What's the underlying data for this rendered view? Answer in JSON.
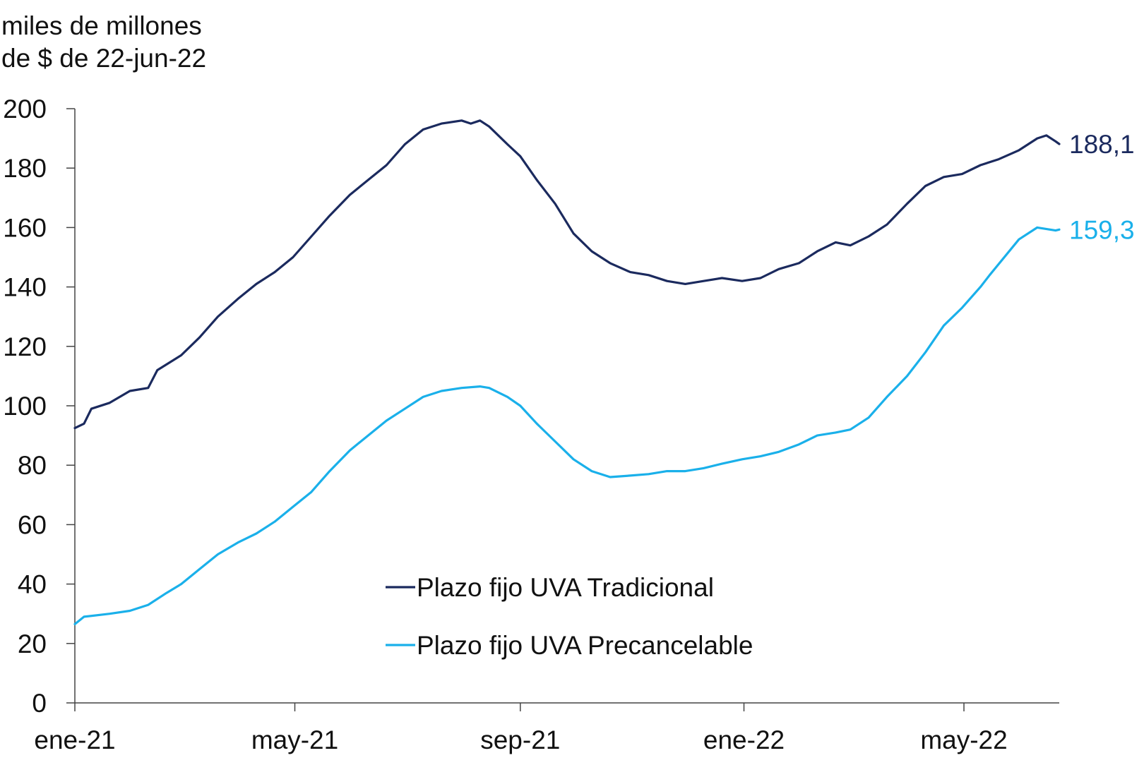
{
  "chart_data": {
    "type": "line",
    "ylabel_line1": "miles de millones",
    "ylabel_line2": "de $ de 22-jun-22",
    "ylim": [
      0,
      200
    ],
    "yticks": [
      "0",
      "20",
      "40",
      "60",
      "80",
      "100",
      "120",
      "140",
      "160",
      "180",
      "200"
    ],
    "x_range": [
      "2021-01-01",
      "2022-06-22"
    ],
    "x_ticks": [
      {
        "date": "2021-01-01",
        "label": "ene-21"
      },
      {
        "date": "2021-05-01",
        "label": "may-21"
      },
      {
        "date": "2021-09-01",
        "label": "sep-21"
      },
      {
        "date": "2022-01-01",
        "label": "ene-22"
      },
      {
        "date": "2022-05-01",
        "label": "may-22"
      }
    ],
    "grid": false,
    "legend_position": "bottom-center",
    "series": [
      {
        "name": "Plazo fijo UVA Tradicional",
        "color": "#1b2a5e",
        "end_label": "188,1",
        "points": [
          [
            "2021-01-01",
            92.5
          ],
          [
            "2021-01-06",
            94
          ],
          [
            "2021-01-10",
            99
          ],
          [
            "2021-01-20",
            101
          ],
          [
            "2021-01-31",
            105
          ],
          [
            "2021-02-10",
            106
          ],
          [
            "2021-02-15",
            112
          ],
          [
            "2021-02-28",
            117
          ],
          [
            "2021-03-10",
            123
          ],
          [
            "2021-03-20",
            130
          ],
          [
            "2021-03-31",
            136
          ],
          [
            "2021-04-10",
            141
          ],
          [
            "2021-04-20",
            145
          ],
          [
            "2021-04-30",
            150
          ],
          [
            "2021-05-10",
            157
          ],
          [
            "2021-05-20",
            164
          ],
          [
            "2021-05-31",
            171
          ],
          [
            "2021-06-10",
            176
          ],
          [
            "2021-06-20",
            181
          ],
          [
            "2021-06-30",
            188
          ],
          [
            "2021-07-10",
            193
          ],
          [
            "2021-07-20",
            195
          ],
          [
            "2021-07-31",
            196
          ],
          [
            "2021-08-05",
            195
          ],
          [
            "2021-08-10",
            196
          ],
          [
            "2021-08-15",
            194
          ],
          [
            "2021-08-25",
            188
          ],
          [
            "2021-09-01",
            184
          ],
          [
            "2021-09-10",
            176
          ],
          [
            "2021-09-20",
            168
          ],
          [
            "2021-09-30",
            158
          ],
          [
            "2021-10-10",
            152
          ],
          [
            "2021-10-20",
            148
          ],
          [
            "2021-10-31",
            145
          ],
          [
            "2021-11-10",
            144
          ],
          [
            "2021-11-20",
            142
          ],
          [
            "2021-11-30",
            141
          ],
          [
            "2021-12-10",
            142
          ],
          [
            "2021-12-20",
            143
          ],
          [
            "2021-12-31",
            142
          ],
          [
            "2022-01-10",
            143
          ],
          [
            "2022-01-20",
            146
          ],
          [
            "2022-01-31",
            148
          ],
          [
            "2022-02-10",
            152
          ],
          [
            "2022-02-20",
            155
          ],
          [
            "2022-02-28",
            154
          ],
          [
            "2022-03-10",
            157
          ],
          [
            "2022-03-20",
            161
          ],
          [
            "2022-03-31",
            168
          ],
          [
            "2022-04-10",
            174
          ],
          [
            "2022-04-20",
            177
          ],
          [
            "2022-04-30",
            178
          ],
          [
            "2022-05-10",
            181
          ],
          [
            "2022-05-20",
            183
          ],
          [
            "2022-05-31",
            186
          ],
          [
            "2022-06-10",
            190
          ],
          [
            "2022-06-15",
            191
          ],
          [
            "2022-06-20",
            189
          ],
          [
            "2022-06-22",
            188.1
          ]
        ]
      },
      {
        "name": "Plazo fijo UVA Precancelable",
        "color": "#1ab0ea",
        "end_label": "159,3",
        "points": [
          [
            "2021-01-01",
            26.5
          ],
          [
            "2021-01-06",
            29
          ],
          [
            "2021-01-20",
            30
          ],
          [
            "2021-01-31",
            31
          ],
          [
            "2021-02-10",
            33
          ],
          [
            "2021-02-20",
            37
          ],
          [
            "2021-02-28",
            40
          ],
          [
            "2021-03-10",
            45
          ],
          [
            "2021-03-20",
            50
          ],
          [
            "2021-03-31",
            54
          ],
          [
            "2021-04-10",
            57
          ],
          [
            "2021-04-20",
            61
          ],
          [
            "2021-04-30",
            66
          ],
          [
            "2021-05-10",
            71
          ],
          [
            "2021-05-20",
            78
          ],
          [
            "2021-05-31",
            85
          ],
          [
            "2021-06-10",
            90
          ],
          [
            "2021-06-20",
            95
          ],
          [
            "2021-06-30",
            99
          ],
          [
            "2021-07-10",
            103
          ],
          [
            "2021-07-20",
            105
          ],
          [
            "2021-07-31",
            106
          ],
          [
            "2021-08-10",
            106.5
          ],
          [
            "2021-08-15",
            106
          ],
          [
            "2021-08-25",
            103
          ],
          [
            "2021-09-01",
            100
          ],
          [
            "2021-09-10",
            94
          ],
          [
            "2021-09-20",
            88
          ],
          [
            "2021-09-30",
            82
          ],
          [
            "2021-10-10",
            78
          ],
          [
            "2021-10-20",
            76
          ],
          [
            "2021-10-31",
            76.5
          ],
          [
            "2021-11-10",
            77
          ],
          [
            "2021-11-20",
            78
          ],
          [
            "2021-11-30",
            78
          ],
          [
            "2021-12-10",
            79
          ],
          [
            "2021-12-20",
            80.5
          ],
          [
            "2021-12-31",
            82
          ],
          [
            "2022-01-10",
            83
          ],
          [
            "2022-01-20",
            84.5
          ],
          [
            "2022-01-31",
            87
          ],
          [
            "2022-02-10",
            90
          ],
          [
            "2022-02-20",
            91
          ],
          [
            "2022-02-28",
            92
          ],
          [
            "2022-03-10",
            96
          ],
          [
            "2022-03-20",
            103
          ],
          [
            "2022-03-31",
            110
          ],
          [
            "2022-04-10",
            118
          ],
          [
            "2022-04-20",
            127
          ],
          [
            "2022-04-30",
            133
          ],
          [
            "2022-05-10",
            140
          ],
          [
            "2022-05-15",
            144
          ],
          [
            "2022-05-31",
            156
          ],
          [
            "2022-06-10",
            160
          ],
          [
            "2022-06-20",
            159
          ],
          [
            "2022-06-22",
            159.3
          ]
        ]
      }
    ]
  }
}
